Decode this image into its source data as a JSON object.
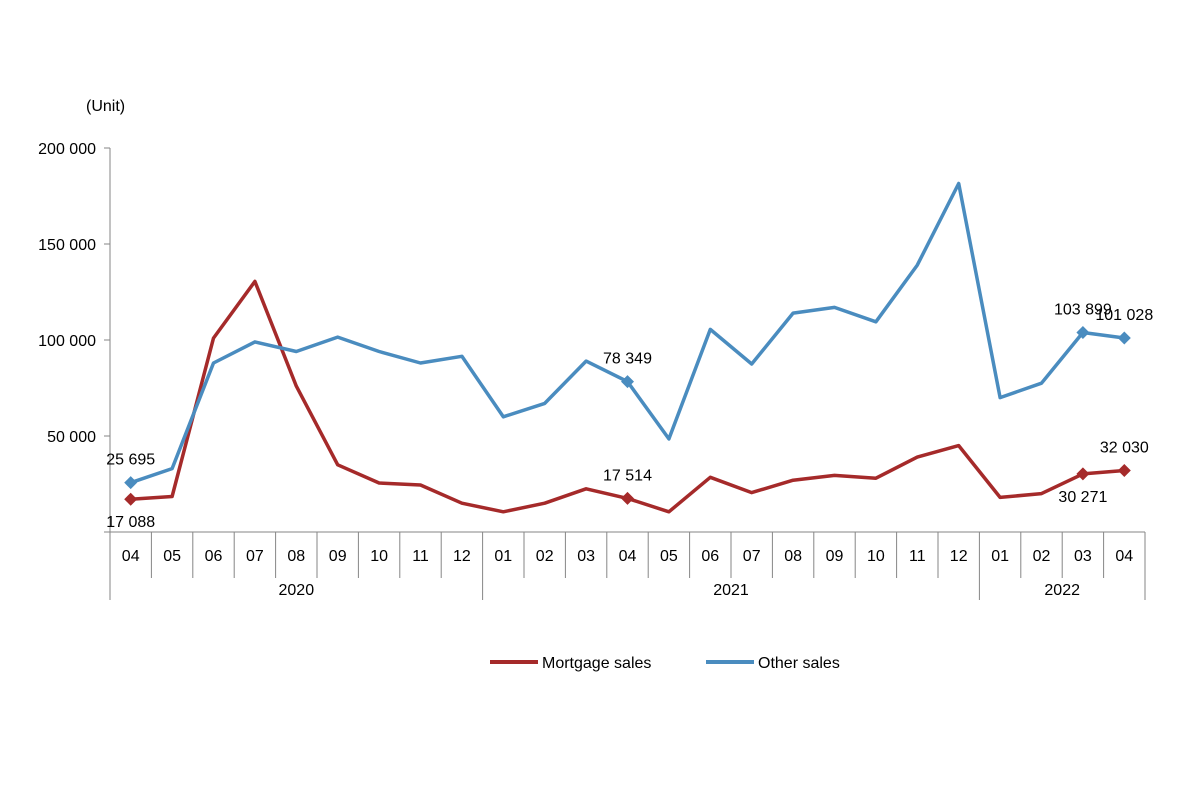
{
  "chart_data": {
    "type": "line",
    "unit_label": "(Unit)",
    "ylim": [
      0,
      200000
    ],
    "y_ticks": [
      {
        "value": 50000,
        "label": "50 000"
      },
      {
        "value": 100000,
        "label": "100 000"
      },
      {
        "value": 150000,
        "label": "150 000"
      },
      {
        "value": 200000,
        "label": "200 000"
      }
    ],
    "months": [
      "04",
      "05",
      "06",
      "07",
      "08",
      "09",
      "10",
      "11",
      "12",
      "01",
      "02",
      "03",
      "04",
      "05",
      "06",
      "07",
      "08",
      "09",
      "10",
      "11",
      "12",
      "01",
      "02",
      "03",
      "04"
    ],
    "years": [
      {
        "label": "2020",
        "start": 0,
        "end": 8
      },
      {
        "label": "2021",
        "start": 9,
        "end": 20
      },
      {
        "label": "2022",
        "start": 21,
        "end": 24
      }
    ],
    "series": [
      {
        "name": "Mortgage sales",
        "color": "#A52A2A",
        "values": [
          17088,
          18500,
          101000,
          130500,
          76000,
          35000,
          25500,
          24500,
          15000,
          10500,
          15000,
          22500,
          17514,
          10500,
          28500,
          20500,
          27000,
          29500,
          28000,
          39000,
          45000,
          18000,
          20000,
          30271,
          32030
        ],
        "markers": [
          0,
          12,
          23,
          24
        ],
        "labels": [
          {
            "index": 0,
            "text": "17 088",
            "pos": "below"
          },
          {
            "index": 12,
            "text": "17 514",
            "pos": "above"
          },
          {
            "index": 23,
            "text": "30 271",
            "pos": "below"
          },
          {
            "index": 24,
            "text": "32 030",
            "pos": "above"
          }
        ]
      },
      {
        "name": "Other sales",
        "color": "#4A8CBF",
        "values": [
          25695,
          33000,
          88000,
          99000,
          94000,
          101500,
          94000,
          88000,
          91500,
          60000,
          67000,
          89000,
          78349,
          48500,
          105500,
          87500,
          114000,
          117000,
          109500,
          139000,
          181500,
          70000,
          77500,
          103899,
          101028
        ],
        "markers": [
          0,
          12,
          23,
          24
        ],
        "labels": [
          {
            "index": 0,
            "text": "25 695",
            "pos": "above"
          },
          {
            "index": 12,
            "text": "78 349",
            "pos": "above"
          },
          {
            "index": 23,
            "text": "103 899",
            "pos": "above"
          },
          {
            "index": 24,
            "text": "101 028",
            "pos": "above"
          }
        ]
      }
    ],
    "legend": [
      "Mortgage sales",
      "Other sales"
    ]
  }
}
